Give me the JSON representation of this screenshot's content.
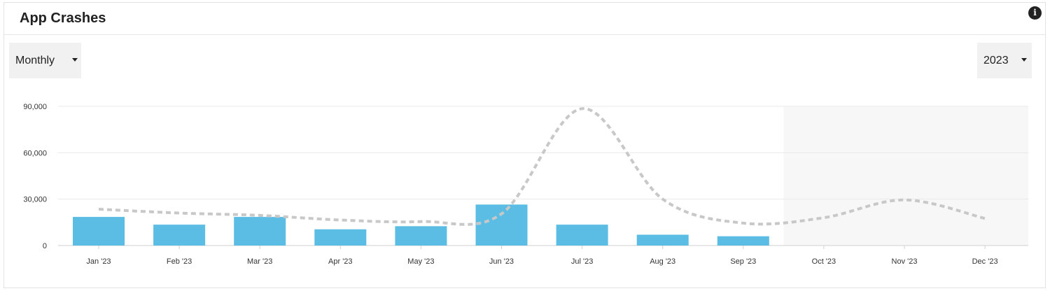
{
  "header": {
    "title": "App Crashes",
    "info_icon": "info-icon",
    "info_glyph": "i"
  },
  "controls": {
    "period": {
      "value": "Monthly",
      "icon": "caret-down-icon"
    },
    "year": {
      "value": "2023",
      "icon": "caret-down-icon"
    }
  },
  "colors": {
    "bar": "#5bbde4",
    "trend": "#c8c8c8",
    "forecast_bg": "#f7f7f7",
    "grid": "#e9e9e9"
  },
  "chart_data": {
    "type": "bar",
    "categories": [
      "Jan '23",
      "Feb '23",
      "Mar '23",
      "Apr '23",
      "May '23",
      "Jun '23",
      "Jul '23",
      "Aug '23",
      "Sep '23",
      "Oct '23",
      "Nov '23",
      "Dec '23"
    ],
    "series": [
      {
        "type": "bar",
        "values": [
          18500,
          13500,
          18500,
          10500,
          12500,
          26500,
          13500,
          7000,
          6000,
          null,
          null,
          null
        ]
      },
      {
        "type": "line",
        "style": "dashed",
        "values": [
          23500,
          21000,
          19500,
          16500,
          15500,
          20500,
          88500,
          30000,
          14500,
          18000,
          29500,
          17500
        ]
      }
    ],
    "y_ticks": [
      "0",
      "30,000",
      "60,000",
      "90,000"
    ],
    "y_tick_values": [
      0,
      30000,
      60000,
      90000
    ],
    "ylim": [
      0,
      90000
    ],
    "grid": true,
    "shaded_categories": [
      "Oct '23",
      "Nov '23",
      "Dec '23"
    ]
  }
}
